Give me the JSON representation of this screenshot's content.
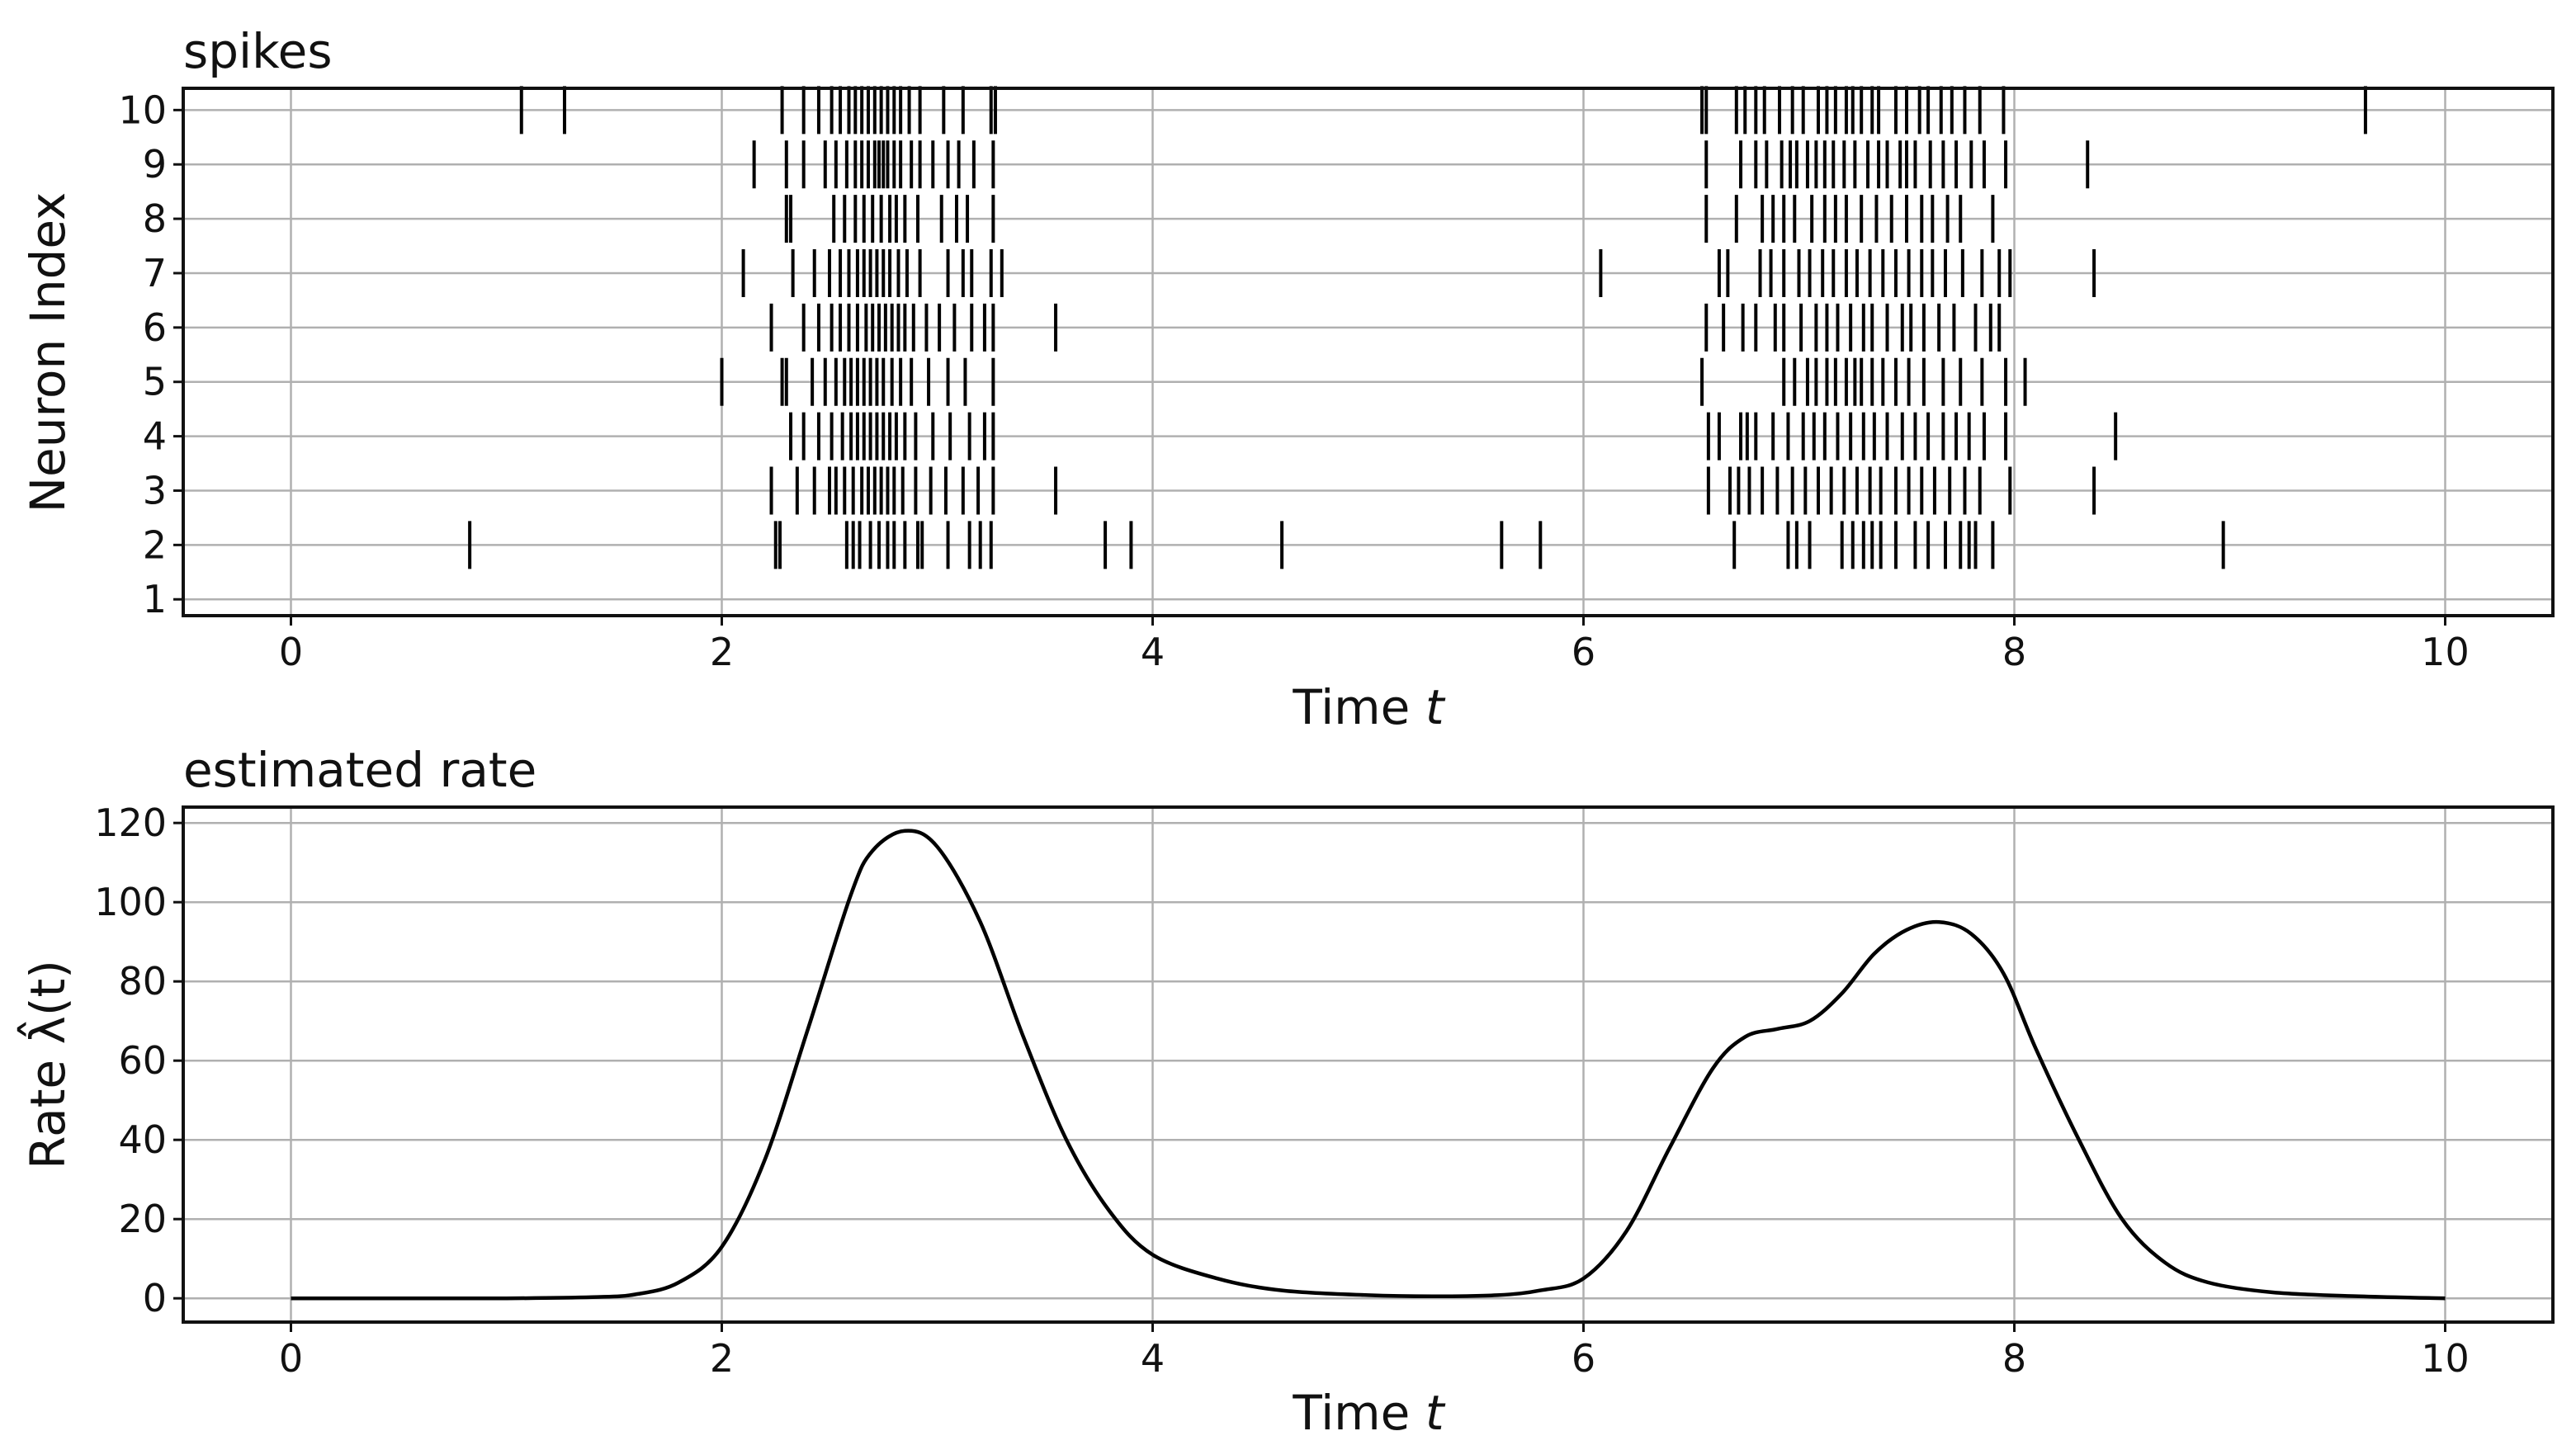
{
  "chart_data": [
    {
      "type": "scatter",
      "title": "spikes",
      "xlabel": "Time ",
      "xlabel_var": "t",
      "ylabel": "Neuron Index",
      "xlim": [
        -0.5,
        10.5
      ],
      "ylim": [
        0.7,
        10.4
      ],
      "xticks": [
        0,
        2,
        4,
        6,
        8,
        10
      ],
      "yticks": [
        1,
        2,
        3,
        4,
        5,
        6,
        7,
        8,
        9,
        10
      ],
      "grid": true,
      "marker": "vertical-tick",
      "series": [
        {
          "neuron": 10,
          "times": [
            1.07,
            1.27,
            2.28,
            2.38,
            2.45,
            2.51,
            2.55,
            2.59,
            2.62,
            2.65,
            2.68,
            2.71,
            2.74,
            2.77,
            2.8,
            2.83,
            2.87,
            2.92,
            3.03,
            3.12,
            3.25,
            3.27,
            6.55,
            6.57,
            6.71,
            6.75,
            6.8,
            6.84,
            6.91,
            6.97,
            7.02,
            7.09,
            7.13,
            7.17,
            7.22,
            7.25,
            7.29,
            7.34,
            7.37,
            7.45,
            7.5,
            7.56,
            7.6,
            7.66,
            7.71,
            7.77,
            7.84,
            7.95,
            9.63
          ]
        },
        {
          "neuron": 9,
          "times": [
            2.15,
            2.3,
            2.38,
            2.48,
            2.53,
            2.58,
            2.62,
            2.65,
            2.68,
            2.71,
            2.73,
            2.75,
            2.77,
            2.8,
            2.83,
            2.88,
            2.92,
            2.98,
            3.05,
            3.1,
            3.17,
            3.26,
            6.57,
            6.73,
            6.8,
            6.85,
            6.92,
            6.96,
            6.99,
            7.04,
            7.08,
            7.12,
            7.16,
            7.21,
            7.26,
            7.32,
            7.37,
            7.41,
            7.47,
            7.5,
            7.54,
            7.61,
            7.67,
            7.73,
            7.8,
            7.86,
            7.96,
            8.34
          ]
        },
        {
          "neuron": 8,
          "times": [
            2.3,
            2.32,
            2.52,
            2.57,
            2.62,
            2.66,
            2.7,
            2.74,
            2.78,
            2.81,
            2.85,
            2.91,
            3.02,
            3.09,
            3.14,
            3.26,
            6.57,
            6.71,
            6.83,
            6.88,
            6.93,
            6.98,
            7.06,
            7.12,
            7.17,
            7.22,
            7.29,
            7.36,
            7.43,
            7.5,
            7.57,
            7.62,
            7.69,
            7.75,
            7.9
          ]
        },
        {
          "neuron": 7,
          "times": [
            2.1,
            2.33,
            2.43,
            2.5,
            2.55,
            2.59,
            2.63,
            2.66,
            2.69,
            2.72,
            2.75,
            2.78,
            2.82,
            2.86,
            2.92,
            3.05,
            3.12,
            3.16,
            3.25,
            3.3,
            6.08,
            6.63,
            6.67,
            6.82,
            6.87,
            6.93,
            7.0,
            7.05,
            7.11,
            7.16,
            7.22,
            7.27,
            7.33,
            7.39,
            7.45,
            7.51,
            7.57,
            7.62,
            7.68,
            7.76,
            7.85,
            7.93,
            7.98,
            8.37
          ]
        },
        {
          "neuron": 6,
          "times": [
            2.23,
            2.38,
            2.45,
            2.51,
            2.55,
            2.59,
            2.63,
            2.67,
            2.7,
            2.73,
            2.76,
            2.79,
            2.82,
            2.85,
            2.89,
            2.95,
            3.01,
            3.08,
            3.16,
            3.22,
            3.26,
            3.55,
            6.57,
            6.65,
            6.74,
            6.8,
            6.89,
            6.93,
            7.01,
            7.08,
            7.13,
            7.18,
            7.24,
            7.3,
            7.34,
            7.41,
            7.48,
            7.52,
            7.58,
            7.65,
            7.72,
            7.82,
            7.89,
            7.93
          ]
        },
        {
          "neuron": 5,
          "times": [
            2.0,
            2.28,
            2.3,
            2.42,
            2.48,
            2.53,
            2.57,
            2.6,
            2.63,
            2.66,
            2.69,
            2.72,
            2.75,
            2.79,
            2.83,
            2.88,
            2.96,
            3.05,
            3.13,
            3.26,
            6.55,
            6.93,
            6.98,
            7.04,
            7.08,
            7.13,
            7.17,
            7.22,
            7.26,
            7.29,
            7.34,
            7.39,
            7.45,
            7.51,
            7.58,
            7.67,
            7.75,
            7.85,
            7.96,
            8.05
          ]
        },
        {
          "neuron": 4,
          "times": [
            2.32,
            2.38,
            2.45,
            2.51,
            2.56,
            2.6,
            2.63,
            2.66,
            2.69,
            2.72,
            2.75,
            2.78,
            2.81,
            2.85,
            2.9,
            2.98,
            3.06,
            3.15,
            3.22,
            3.26,
            6.58,
            6.63,
            6.73,
            6.76,
            6.8,
            6.88,
            6.95,
            7.02,
            7.07,
            7.12,
            7.18,
            7.24,
            7.3,
            7.35,
            7.41,
            7.48,
            7.54,
            7.6,
            7.67,
            7.73,
            7.79,
            7.86,
            7.96,
            8.47
          ]
        },
        {
          "neuron": 3,
          "times": [
            2.23,
            2.35,
            2.43,
            2.5,
            2.53,
            2.57,
            2.61,
            2.65,
            2.68,
            2.71,
            2.74,
            2.77,
            2.8,
            2.84,
            2.9,
            2.97,
            3.04,
            3.12,
            3.19,
            3.26,
            3.55,
            6.58,
            6.68,
            6.72,
            6.77,
            6.83,
            6.9,
            6.97,
            7.03,
            7.09,
            7.15,
            7.21,
            7.27,
            7.33,
            7.38,
            7.45,
            7.51,
            7.57,
            7.63,
            7.7,
            7.77,
            7.84,
            7.98,
            8.37
          ]
        },
        {
          "neuron": 2,
          "times": [
            0.83,
            2.25,
            2.27,
            2.58,
            2.61,
            2.64,
            2.69,
            2.73,
            2.77,
            2.8,
            2.85,
            2.91,
            2.93,
            3.05,
            3.15,
            3.2,
            3.25,
            3.78,
            3.9,
            4.6,
            5.62,
            5.8,
            6.7,
            6.95,
            6.99,
            7.05,
            7.2,
            7.25,
            7.3,
            7.34,
            7.38,
            7.45,
            7.54,
            7.6,
            7.68,
            7.75,
            7.79,
            7.82,
            7.9,
            8.97
          ]
        },
        {
          "neuron": 1,
          "times": []
        }
      ]
    },
    {
      "type": "line",
      "title": "estimated rate",
      "xlabel": "Time ",
      "xlabel_var": "t",
      "ylabel": "Rate λ̂(t)",
      "xlim": [
        -0.5,
        10.5
      ],
      "ylim": [
        -6,
        124
      ],
      "xticks": [
        0,
        2,
        4,
        6,
        8,
        10
      ],
      "yticks": [
        0,
        20,
        40,
        60,
        80,
        100,
        120
      ],
      "grid": true,
      "x": [
        0,
        0.5,
        1.0,
        1.4,
        1.6,
        1.8,
        2.0,
        2.2,
        2.4,
        2.6,
        2.7,
        2.85,
        3.0,
        3.2,
        3.4,
        3.6,
        3.8,
        4.0,
        4.3,
        4.6,
        5.0,
        5.3,
        5.6,
        5.8,
        6.0,
        6.2,
        6.4,
        6.6,
        6.75,
        6.9,
        7.05,
        7.2,
        7.35,
        7.5,
        7.65,
        7.8,
        7.95,
        8.1,
        8.3,
        8.5,
        8.7,
        8.9,
        9.2,
        9.6,
        10.0
      ],
      "y": [
        0,
        0,
        0,
        0.3,
        1,
        4,
        13,
        35,
        68,
        102,
        113,
        118,
        114,
        95,
        66,
        40,
        22,
        11,
        5,
        2,
        0.8,
        0.5,
        0.8,
        2,
        5,
        17,
        38,
        58,
        66,
        68,
        70,
        77,
        87,
        93,
        95,
        92,
        82,
        63,
        40,
        20,
        9,
        4,
        1.5,
        0.5,
        0
      ]
    }
  ]
}
